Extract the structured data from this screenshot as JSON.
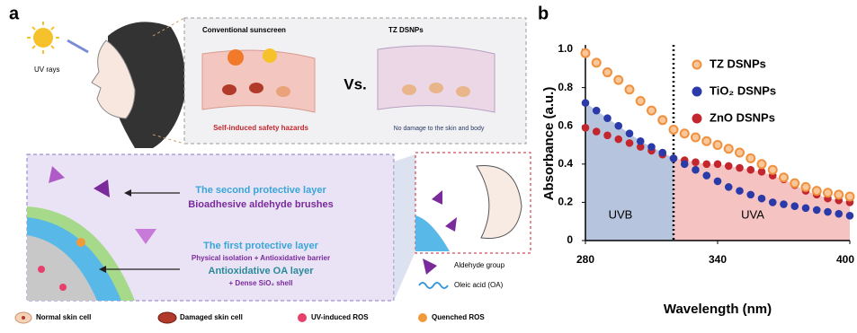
{
  "panel_labels": [
    "a",
    "b"
  ],
  "diagram": {
    "uv_label": "UV rays",
    "comparison": {
      "left_title": "Conventional sunscreen",
      "right_title": "TZ DSNPs",
      "versus": "Vs.",
      "left_caption": "Self-induced safety hazards",
      "right_caption": "No damage to the skin and body"
    },
    "layers": [
      {
        "title": "The second protective layer",
        "lines": [
          "Bioadhesive aldehyde brushes"
        ]
      },
      {
        "title": "The first protective layer",
        "lines": [
          "Physical isolation + Antioxidative barrier",
          "Antioxidative OA layer",
          "+ Dense SiO₂ shell"
        ]
      }
    ],
    "side_legend": [
      "Aldehyde group",
      "Oleic acid (OA)"
    ],
    "legend": [
      "Normal skin cell",
      "Damaged skin cell",
      "UV-induced ROS",
      "Quenched ROS"
    ]
  },
  "chart_data": {
    "type": "scatter",
    "x_label": "Wavelength (nm)",
    "y_label": "Absorbance (a.u.)",
    "x": [
      280,
      285,
      290,
      295,
      300,
      305,
      310,
      315,
      320,
      325,
      330,
      335,
      340,
      345,
      350,
      355,
      360,
      365,
      370,
      375,
      380,
      385,
      390,
      395,
      400
    ],
    "series": [
      {
        "name": "TZ DSNPs",
        "color": "#f0913f",
        "values": [
          0.98,
          0.93,
          0.88,
          0.84,
          0.79,
          0.73,
          0.68,
          0.63,
          0.58,
          0.56,
          0.54,
          0.52,
          0.5,
          0.48,
          0.46,
          0.43,
          0.4,
          0.37,
          0.33,
          0.3,
          0.28,
          0.26,
          0.25,
          0.24,
          0.23
        ]
      },
      {
        "name": "TiO₂ DSNPs",
        "color": "#2a3aa8",
        "values": [
          0.72,
          0.68,
          0.64,
          0.6,
          0.56,
          0.52,
          0.49,
          0.46,
          0.43,
          0.4,
          0.37,
          0.34,
          0.31,
          0.28,
          0.26,
          0.24,
          0.22,
          0.2,
          0.19,
          0.18,
          0.17,
          0.16,
          0.15,
          0.14,
          0.13
        ]
      },
      {
        "name": "ZnO DSNPs",
        "color": "#c4262e",
        "values": [
          0.59,
          0.57,
          0.55,
          0.53,
          0.51,
          0.49,
          0.47,
          0.45,
          0.43,
          0.42,
          0.41,
          0.4,
          0.4,
          0.39,
          0.38,
          0.37,
          0.36,
          0.34,
          0.32,
          0.29,
          0.26,
          0.24,
          0.22,
          0.21,
          0.2
        ]
      }
    ],
    "regions": [
      {
        "label": "UVB",
        "from": 280,
        "to": 320,
        "under": 1,
        "color": "#b7c4de"
      },
      {
        "label": "UVA",
        "from": 320,
        "to": 400,
        "under": 2,
        "color": "#f6c3c3"
      }
    ],
    "divider": 320,
    "xlim": [
      280,
      400
    ],
    "xticks": [
      280,
      340,
      400
    ],
    "ylim": [
      0,
      1
    ],
    "yticks": [
      0,
      0.2,
      0.4,
      0.6,
      0.8,
      {
        "value": 1,
        "label": "1.0"
      }
    ],
    "legend": "top-right"
  }
}
